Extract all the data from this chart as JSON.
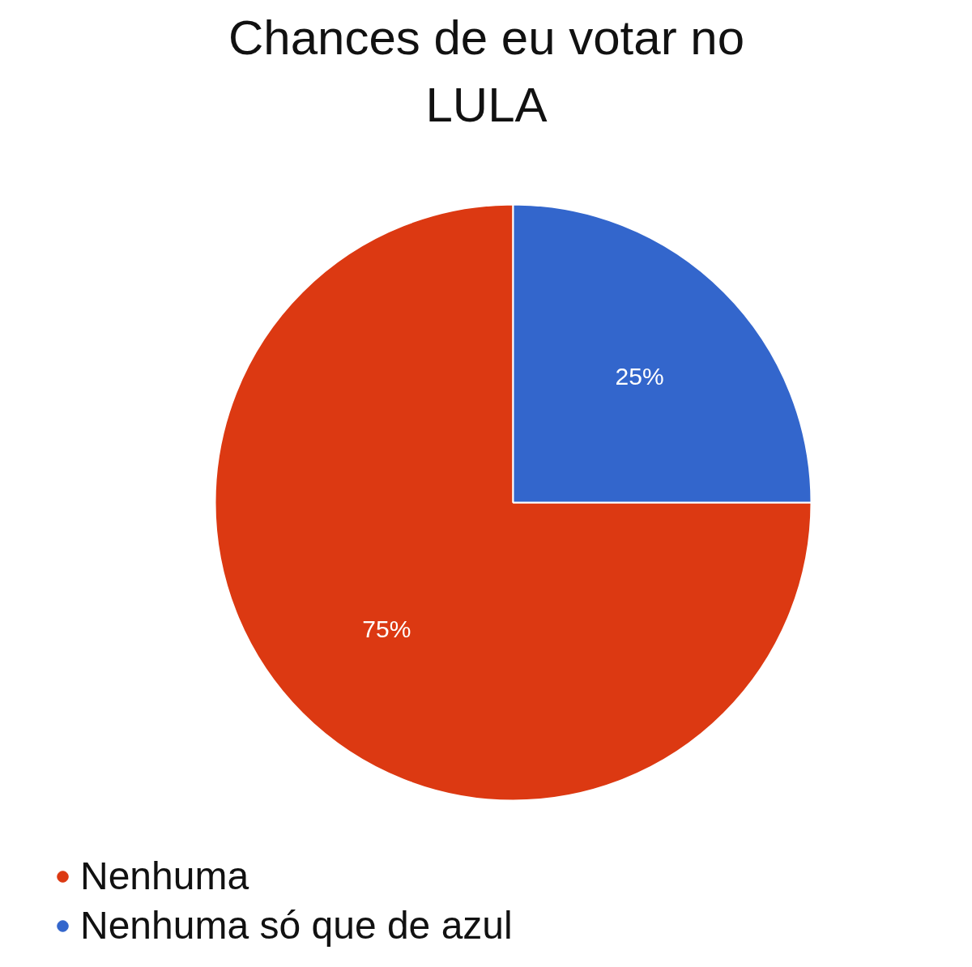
{
  "chart_data": {
    "type": "pie",
    "title": "Chances de eu votar no LULA",
    "categories": [
      "Nenhuma",
      "Nenhuma só que de azul"
    ],
    "values": [
      75,
      25
    ],
    "colors": [
      "#dc3912",
      "#3366cc"
    ],
    "value_labels": [
      "75%",
      "25%"
    ],
    "legend": "bottom left"
  }
}
